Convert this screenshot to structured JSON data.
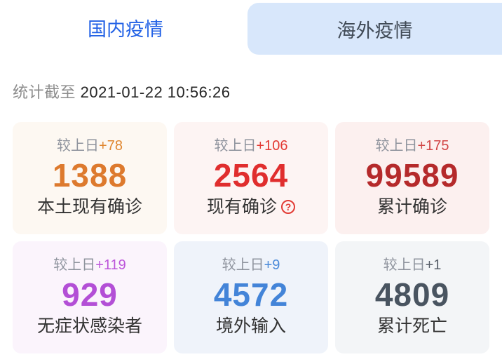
{
  "tabs": [
    {
      "label": "国内疫情",
      "active": true
    },
    {
      "label": "海外疫情",
      "active": false
    }
  ],
  "timestamp": {
    "prefix": "统计截至",
    "value": "2021-01-22 10:56:26"
  },
  "cards": [
    {
      "delta_prefix": "较上日",
      "delta": "+78",
      "value": "1388",
      "label": "本土现有确诊",
      "has_info_icon": false,
      "colors": {
        "bg": "#fdf8f2",
        "delta": "#e0862f",
        "value": "#dd7a2e"
      }
    },
    {
      "delta_prefix": "较上日",
      "delta": "+106",
      "value": "2564",
      "label": "现有确诊",
      "has_info_icon": true,
      "colors": {
        "bg": "#fdf4f3",
        "delta": "#e33a33",
        "value": "#e02e2e"
      }
    },
    {
      "delta_prefix": "较上日",
      "delta": "+175",
      "value": "99589",
      "label": "累计确诊",
      "has_info_icon": false,
      "colors": {
        "bg": "#fcf0ef",
        "delta": "#d14545",
        "value": "#b52a2b"
      }
    },
    {
      "delta_prefix": "较上日",
      "delta": "+119",
      "value": "929",
      "label": "无症状感染者",
      "has_info_icon": false,
      "colors": {
        "bg": "#fbf4fc",
        "delta": "#bc55da",
        "value": "#b34fd6"
      }
    },
    {
      "delta_prefix": "较上日",
      "delta": "+9",
      "value": "4572",
      "label": "境外输入",
      "has_info_icon": false,
      "colors": {
        "bg": "#eff3fa",
        "delta": "#4a8ad9",
        "value": "#4384d8"
      }
    },
    {
      "delta_prefix": "较上日",
      "delta": "+1",
      "value": "4809",
      "label": "累计死亡",
      "has_info_icon": false,
      "colors": {
        "bg": "#f3f5f7",
        "delta": "#59606a",
        "value": "#495460"
      }
    }
  ],
  "icons": {
    "info_icon_glyph": "?"
  },
  "ui_colors": {
    "active_tab_text": "#2463e6",
    "inactive_tab_bg": "#d8e7fb",
    "inactive_tab_text": "#414b57",
    "timestamp_prefix": "#8c8c8c",
    "timestamp_value": "#262626"
  }
}
